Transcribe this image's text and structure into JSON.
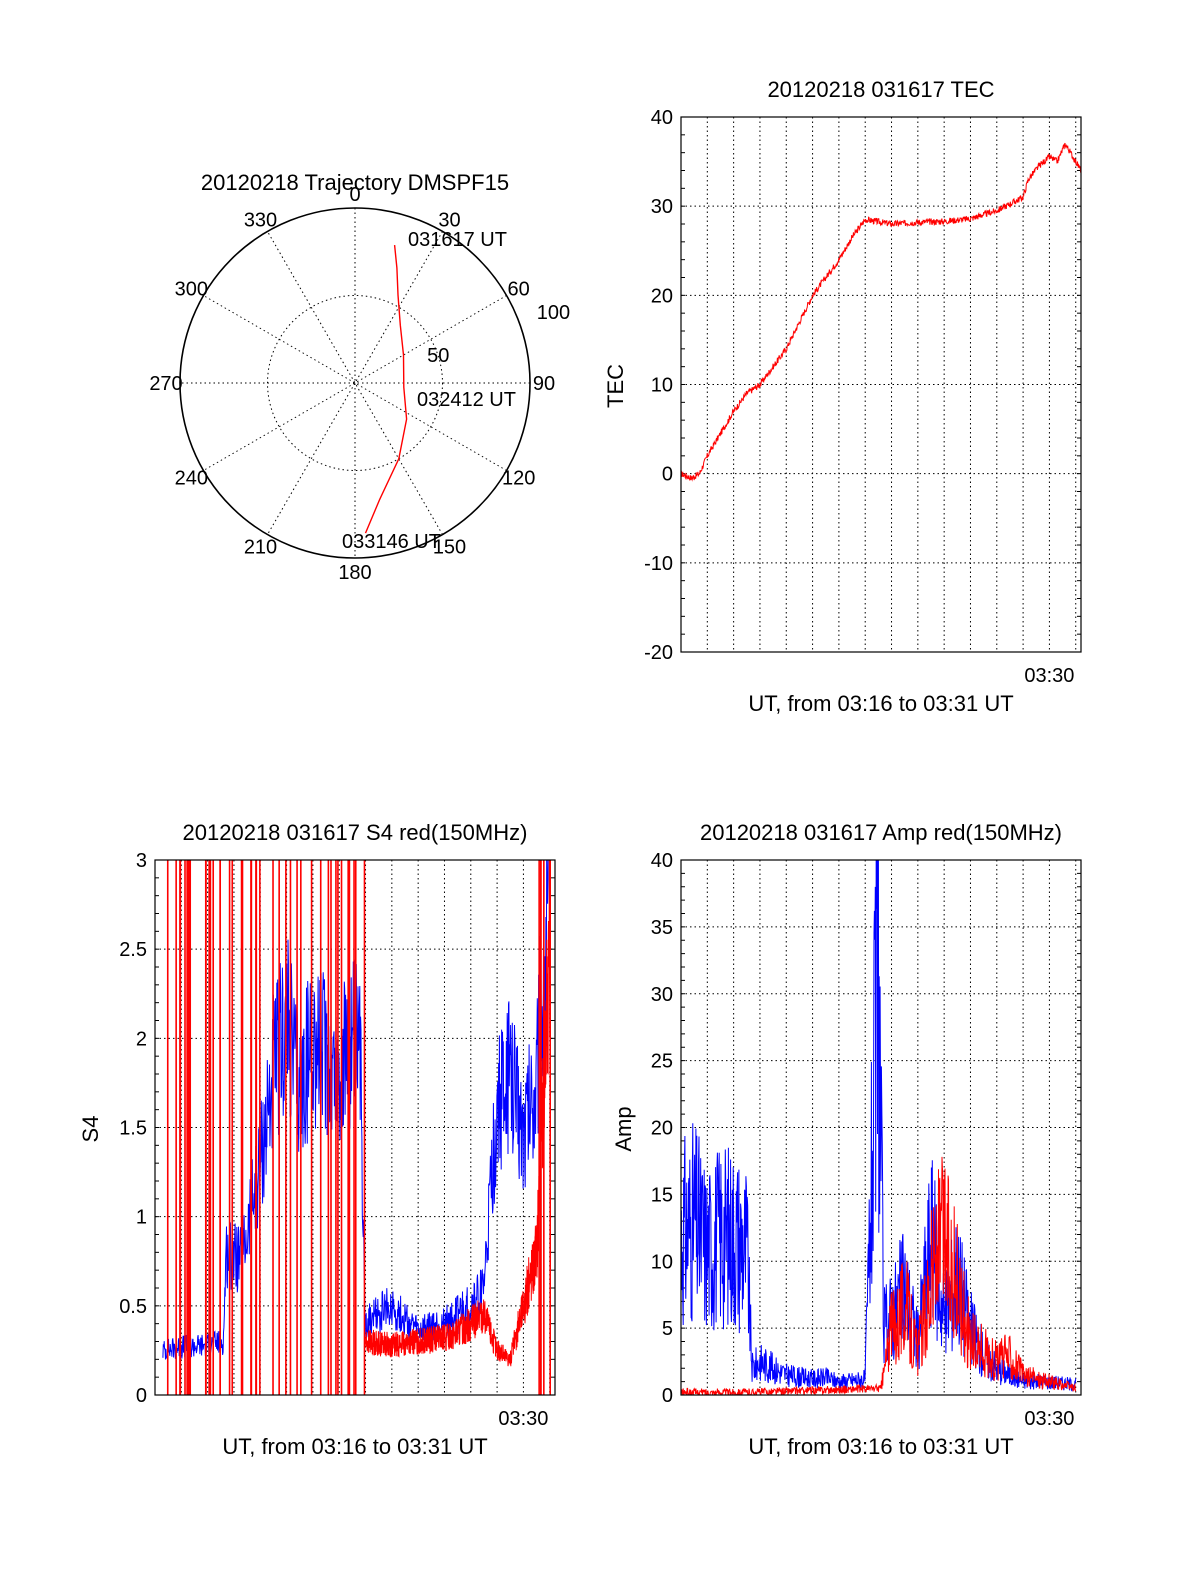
{
  "chart_data": [
    {
      "type": "polar-trajectory",
      "title": "20120218 Trajectory DMSPF15",
      "angle_labels": [
        "0",
        "30",
        "60",
        "90",
        "120",
        "150",
        "180",
        "210",
        "240",
        "270",
        "300",
        "330"
      ],
      "radius_labels": [
        "50",
        "100"
      ],
      "rlim": [
        0,
        100
      ],
      "grid": true,
      "track_color": "#ff0000",
      "track": [
        {
          "az": 16,
          "el_r": 82
        },
        {
          "az": 20,
          "el_r": 70
        },
        {
          "az": 26,
          "el_r": 56
        },
        {
          "az": 38,
          "el_r": 42
        },
        {
          "az": 60,
          "el_r": 32
        },
        {
          "az": 95,
          "el_r": 28
        },
        {
          "az": 125,
          "el_r": 36
        },
        {
          "az": 150,
          "el_r": 50
        },
        {
          "az": 168,
          "el_r": 68
        },
        {
          "az": 176,
          "el_r": 86
        }
      ],
      "annotations": [
        "031617 UT",
        "032412 UT",
        "033146 UT"
      ]
    },
    {
      "type": "line",
      "title": "20120218 031617 TEC",
      "xlabel": "UT, from 03:16 to 03:31 UT",
      "ylabel": "TEC",
      "xlim": [
        0,
        15.2
      ],
      "ylim": [
        -20,
        40
      ],
      "yticks": [
        -20,
        -10,
        0,
        10,
        20,
        30,
        40
      ],
      "xtick_label": "03:30",
      "xtick_pos": 14,
      "grid": true,
      "series": [
        {
          "color": "#ff0000",
          "x": [
            0,
            0.4,
            0.7,
            1.0,
            1.4,
            2.0,
            2.5,
            3.0,
            3.5,
            4.0,
            4.5,
            5.0,
            5.5,
            6.0,
            6.5,
            7.0,
            8.0,
            9.0,
            10.0,
            11.0,
            12.0,
            13.0,
            13.2,
            13.6,
            14.0,
            14.3,
            14.6,
            15.2
          ],
          "y": [
            0,
            -0.5,
            0,
            2,
            4,
            7,
            9,
            10,
            12,
            14,
            17,
            20,
            22,
            24,
            26.5,
            28.5,
            28,
            28.2,
            28.3,
            28.6,
            29.5,
            31,
            33,
            34.5,
            35.5,
            35,
            37,
            34
          ]
        }
      ]
    },
    {
      "type": "line",
      "title": "20120218 031617 S4 red(150MHz)",
      "xlabel": "UT, from 03:16 to 03:31 UT",
      "ylabel": "S4",
      "xlim": [
        0,
        15.2
      ],
      "ylim": [
        0,
        3
      ],
      "yticks": [
        0,
        0.5,
        1,
        1.5,
        2,
        2.5,
        3
      ],
      "ytick_labels": [
        "0",
        "0.5",
        "1",
        "1.5",
        "2",
        "2.5",
        "3"
      ],
      "xtick_label": "03:30",
      "xtick_pos": 14,
      "grid": true,
      "series": [
        {
          "color": "#0000ff",
          "x": [
            0.3,
            1.0,
            2.0,
            2.6,
            2.7,
            3.3,
            4.0,
            4.5,
            5.0,
            5.5,
            6.0,
            6.5,
            7.0,
            7.5,
            7.8,
            8.0,
            9.0,
            10.0,
            11.0,
            11.5,
            12.0,
            12.5,
            13.0,
            13.5,
            14.0,
            14.5,
            15.0
          ],
          "y": [
            0.25,
            0.27,
            0.28,
            0.3,
            0.8,
            0.75,
            1.3,
            1.8,
            2.1,
            1.7,
            2.0,
            1.9,
            1.8,
            2.0,
            1.9,
            0.4,
            0.5,
            0.35,
            0.4,
            0.45,
            0.5,
            0.6,
            1.6,
            1.8,
            1.5,
            1.8,
            2.9
          ]
        },
        {
          "color": "#ff0000",
          "x": [
            8.0,
            9.0,
            10.0,
            11.0,
            11.5,
            12.0,
            12.5,
            13.0,
            13.5,
            14.0,
            14.5,
            15.0
          ],
          "y": [
            0.3,
            0.28,
            0.3,
            0.32,
            0.35,
            0.4,
            0.45,
            0.25,
            0.2,
            0.5,
            0.8,
            2.6
          ]
        }
      ]
    },
    {
      "type": "line",
      "title": "20120218 031617 Amp red(150MHz)",
      "xlabel": "UT, from 03:16 to 03:31 UT",
      "ylabel": "Amp",
      "xlim": [
        0,
        15.2
      ],
      "ylim": [
        0,
        40
      ],
      "yticks": [
        0,
        5,
        10,
        15,
        20,
        25,
        30,
        35,
        40
      ],
      "xtick_label": "03:30",
      "xtick_pos": 14,
      "grid": true,
      "series": [
        {
          "color": "#0000ff",
          "x": [
            0,
            0.5,
            1.0,
            1.5,
            2.0,
            2.5,
            2.7,
            3.0,
            4.0,
            5.0,
            5.5,
            6.0,
            7.0,
            7.5,
            7.7,
            8.0,
            8.5,
            9.0,
            9.5,
            10.0,
            10.5,
            11.0,
            11.5,
            12.0,
            12.5,
            13.0,
            14.0,
            15.0
          ],
          "y": [
            12,
            13,
            11,
            12,
            12,
            11,
            2,
            2.5,
            1.5,
            1.2,
            1.3,
            1.0,
            1.2,
            32,
            5,
            6,
            8,
            4,
            12,
            6,
            9,
            5,
            3,
            2,
            1.5,
            1.0,
            1.0,
            0.8
          ]
        },
        {
          "color": "#ff0000",
          "x": [
            0,
            2.6,
            7.6,
            8.0,
            8.5,
            9.0,
            9.5,
            10.0,
            10.5,
            11.0,
            12.0,
            12.5,
            13.0,
            14.0,
            15.0
          ],
          "y": [
            0.2,
            0.2,
            0.5,
            5,
            7,
            3,
            9,
            12,
            8,
            4,
            2.5,
            3,
            1.5,
            1.0,
            0.5
          ]
        }
      ]
    }
  ]
}
